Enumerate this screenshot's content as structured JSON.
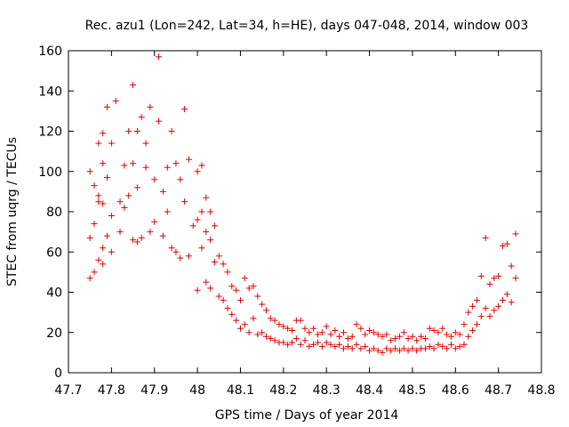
{
  "chart_data": {
    "type": "scatter",
    "title": "Rec. azu1 (Lon=242, Lat=34, h=HE), days 047-048, 2014, window 003",
    "xlabel": "GPS time / Days of year 2014",
    "ylabel": "STEC from uqrg / TECUs",
    "xlim": [
      47.7,
      48.8
    ],
    "ylim": [
      0,
      160
    ],
    "x_ticks": [
      47.7,
      47.8,
      47.9,
      48.0,
      48.1,
      48.2,
      48.3,
      48.4,
      48.5,
      48.6,
      48.7,
      48.8
    ],
    "x_tick_labels": [
      "47.7",
      "47.8",
      "47.9",
      "48",
      "48.1",
      "48.2",
      "48.3",
      "48.4",
      "48.5",
      "48.6",
      "48.7",
      "48.8"
    ],
    "y_ticks": [
      0,
      20,
      40,
      60,
      80,
      100,
      120,
      140,
      160
    ],
    "y_tick_labels": [
      "0",
      "20",
      "40",
      "60",
      "80",
      "100",
      "120",
      "140",
      "160"
    ],
    "grid": false,
    "legend": "none",
    "marker": "plus",
    "marker_color": "#e00000",
    "series": [
      {
        "x": [
          47.75,
          47.75,
          47.75,
          47.76,
          47.76,
          47.76,
          47.77,
          47.77,
          47.77,
          47.77,
          47.78,
          47.78,
          47.78,
          47.78,
          47.78,
          47.79,
          47.79,
          47.79,
          47.8,
          47.8,
          47.8,
          47.81,
          47.82,
          47.82,
          47.83,
          47.83,
          47.84,
          47.84,
          47.85,
          47.85,
          47.85,
          47.86,
          47.86,
          47.86,
          47.87,
          47.87,
          47.88,
          47.88,
          47.89,
          47.89,
          47.9,
          47.9,
          47.91,
          47.91,
          47.92,
          47.92,
          47.93,
          47.93,
          47.94,
          47.94,
          47.95,
          47.95,
          47.96,
          47.96,
          47.97,
          47.97,
          47.98,
          47.98,
          47.99,
          48.0,
          48.0,
          48.0,
          48.01,
          48.01,
          48.01,
          48.02,
          48.02,
          48.02,
          48.03,
          48.03,
          48.03,
          48.04,
          48.04,
          48.05,
          48.05,
          48.06,
          48.06,
          48.07,
          48.07,
          48.08,
          48.08,
          48.09,
          48.09,
          48.1,
          48.1,
          48.11,
          48.11,
          48.12,
          48.12,
          48.13,
          48.13,
          48.14,
          48.14,
          48.15,
          48.15,
          48.16,
          48.16,
          48.17,
          48.17,
          48.18,
          48.18,
          48.19,
          48.19,
          48.2,
          48.2,
          48.21,
          48.21,
          48.22,
          48.22,
          48.23,
          48.23,
          48.24,
          48.24,
          48.25,
          48.25,
          48.26,
          48.26,
          48.27,
          48.27,
          48.28,
          48.28,
          48.29,
          48.29,
          48.3,
          48.3,
          48.31,
          48.31,
          48.32,
          48.32,
          48.33,
          48.33,
          48.34,
          48.34,
          48.35,
          48.35,
          48.36,
          48.36,
          48.37,
          48.37,
          48.38,
          48.38,
          48.39,
          48.39,
          48.4,
          48.4,
          48.41,
          48.41,
          48.42,
          48.42,
          48.43,
          48.43,
          48.44,
          48.44,
          48.45,
          48.45,
          48.46,
          48.46,
          48.47,
          48.47,
          48.48,
          48.48,
          48.49,
          48.49,
          48.5,
          48.5,
          48.51,
          48.51,
          48.52,
          48.52,
          48.53,
          48.53,
          48.54,
          48.54,
          48.55,
          48.55,
          48.56,
          48.56,
          48.57,
          48.57,
          48.58,
          48.58,
          48.59,
          48.59,
          48.6,
          48.6,
          48.61,
          48.61,
          48.62,
          48.62,
          48.63,
          48.63,
          48.64,
          48.64,
          48.65,
          48.65,
          48.66,
          48.66,
          48.67,
          48.67,
          48.68,
          48.68,
          48.69,
          48.69,
          48.7,
          48.7,
          48.71,
          48.71,
          48.72,
          48.72,
          48.73,
          48.73,
          48.74,
          48.74
        ],
        "y": [
          100,
          67,
          47,
          93,
          74,
          50,
          114,
          88,
          56,
          85,
          119,
          104,
          84,
          62,
          54,
          132,
          97,
          68,
          114,
          78,
          60,
          135,
          85,
          70,
          103,
          82,
          120,
          88,
          66,
          143,
          104,
          65,
          92,
          120,
          127,
          67,
          114,
          102,
          70,
          132,
          96,
          75,
          157,
          125,
          90,
          68,
          102,
          80,
          120,
          62,
          104,
          60,
          96,
          57,
          131,
          85,
          106,
          58,
          73,
          100,
          76,
          41,
          103,
          80,
          62,
          87,
          70,
          45,
          80,
          66,
          42,
          73,
          55,
          58,
          38,
          54,
          36,
          50,
          32,
          43,
          29,
          41,
          26,
          36,
          22,
          47,
          24,
          42,
          20,
          43,
          27,
          38,
          19,
          34,
          20,
          31,
          18,
          27,
          17,
          26,
          16,
          24,
          15,
          23,
          15,
          22,
          14,
          21,
          15,
          26,
          17,
          26,
          14,
          22,
          16,
          20,
          13,
          22,
          14,
          19,
          15,
          20,
          13,
          23,
          15,
          19,
          14,
          21,
          13,
          18,
          14,
          20,
          12,
          17,
          13,
          18,
          12,
          24,
          14,
          22,
          12,
          19,
          13,
          21,
          11,
          20,
          12,
          19,
          11,
          18,
          10,
          19,
          12,
          16,
          11,
          17,
          12,
          18,
          11,
          20,
          12,
          17,
          11,
          18,
          12,
          16,
          11,
          18,
          12,
          17,
          12,
          22,
          13,
          21,
          12,
          20,
          14,
          22,
          13,
          19,
          12,
          18,
          14,
          20,
          12,
          19,
          13,
          24,
          14,
          30,
          18,
          33,
          21,
          36,
          24,
          48,
          28,
          67,
          32,
          44,
          28,
          47,
          31,
          48,
          33,
          63,
          36,
          64,
          39,
          53,
          35,
          69,
          47
        ],
        "note": ""
      }
    ]
  }
}
